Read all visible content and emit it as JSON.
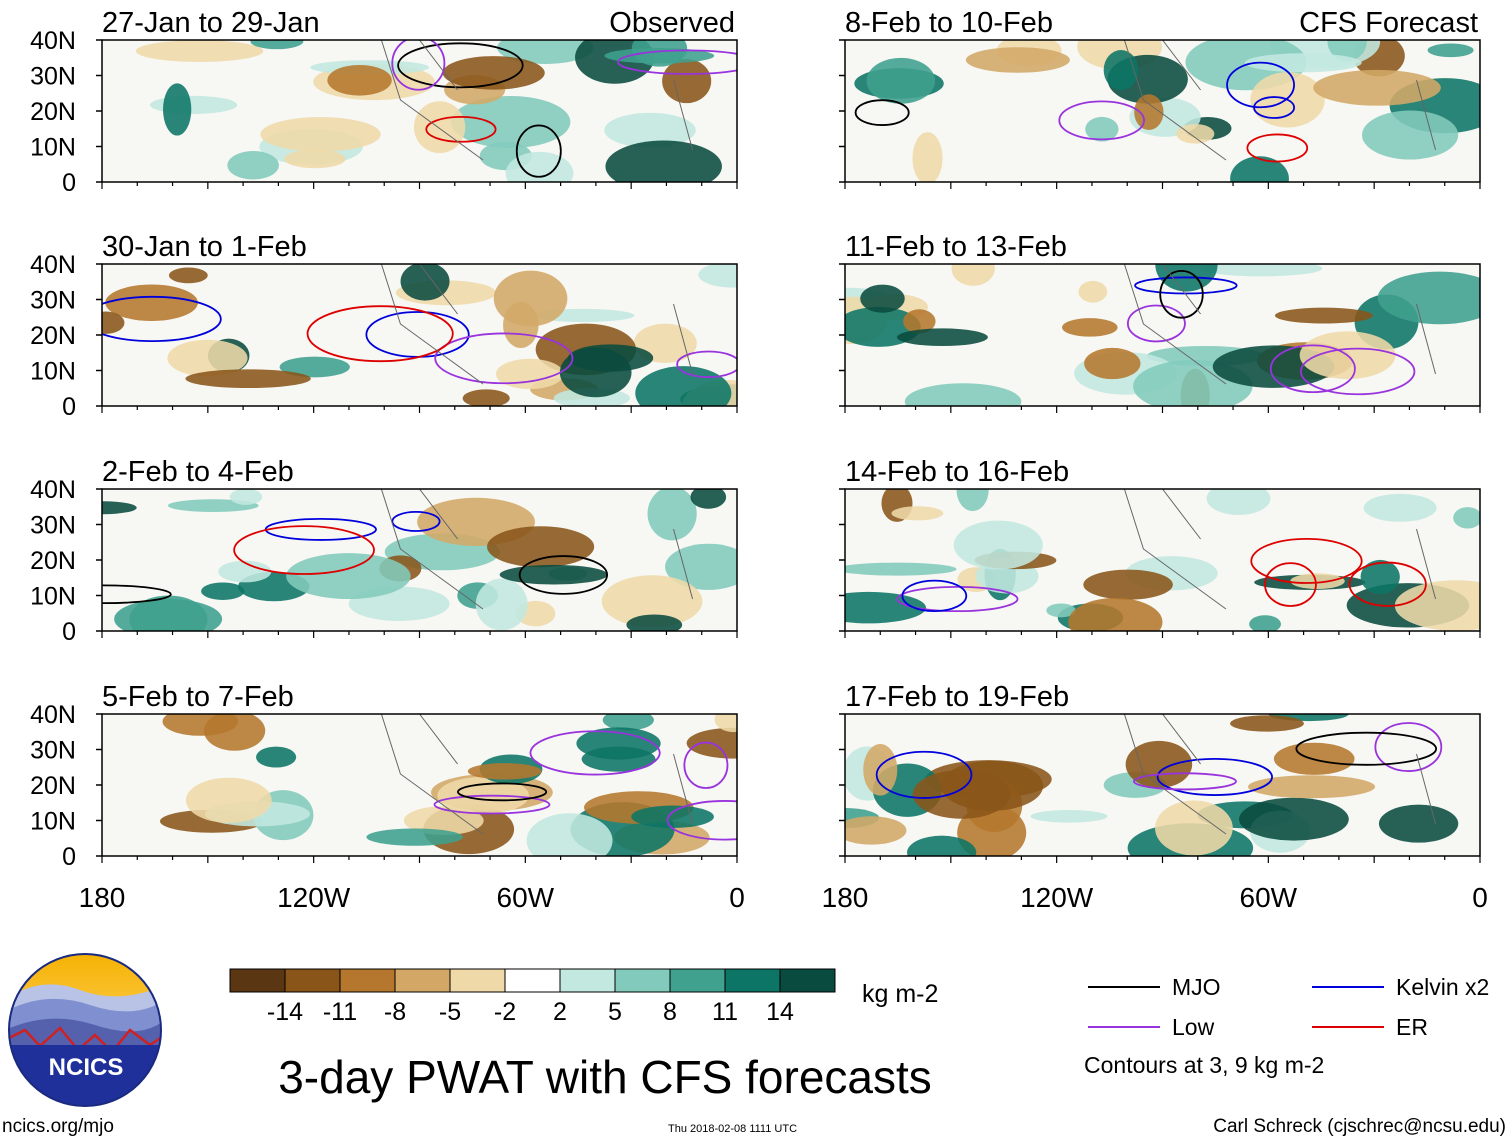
{
  "chart_data": {
    "type": "heatmap",
    "title": "3-day PWAT with CFS forecasts",
    "units": "kg m-2",
    "contours_note": "Contours at 3, 9 kg m-2",
    "columns": [
      {
        "label": "Observed",
        "panels": [
          "27-Jan to 29-Jan",
          "30-Jan to 1-Feb",
          "2-Feb to 4-Feb",
          "5-Feb to 7-Feb"
        ]
      },
      {
        "label": "CFS Forecast",
        "panels": [
          "8-Feb to 10-Feb",
          "11-Feb to 13-Feb",
          "14-Feb to 16-Feb",
          "17-Feb to 19-Feb"
        ]
      }
    ],
    "y_ticks": [
      "40N",
      "30N",
      "20N",
      "10N",
      "0"
    ],
    "x_ticks": [
      "180",
      "120W",
      "60W",
      "0"
    ],
    "colorbar": {
      "colors": [
        "#5a3712",
        "#8a5519",
        "#b5772d",
        "#d3a866",
        "#efd9a8",
        "#ffffff",
        "#c2e8e0",
        "#82cbbc",
        "#3fa18e",
        "#0d7565",
        "#0a4b3f"
      ],
      "labels": [
        "-14",
        "-11",
        "-8",
        "-5",
        "-2",
        "2",
        "5",
        "8",
        "11",
        "14"
      ]
    },
    "legend": [
      {
        "label": "MJO",
        "color": "#000000"
      },
      {
        "label": "Kelvin x2",
        "color": "#0000dd"
      },
      {
        "label": "Low",
        "color": "#9933dd"
      },
      {
        "label": "ER",
        "color": "#dd0000"
      }
    ]
  },
  "logo": {
    "text": "NCICS"
  },
  "footer": {
    "url": "ncics.org/mjo",
    "timestamp": "Thu 2018-02-08 1111 UTC",
    "credit": "Carl Schreck (cjschrec@ncsu.edu)"
  }
}
